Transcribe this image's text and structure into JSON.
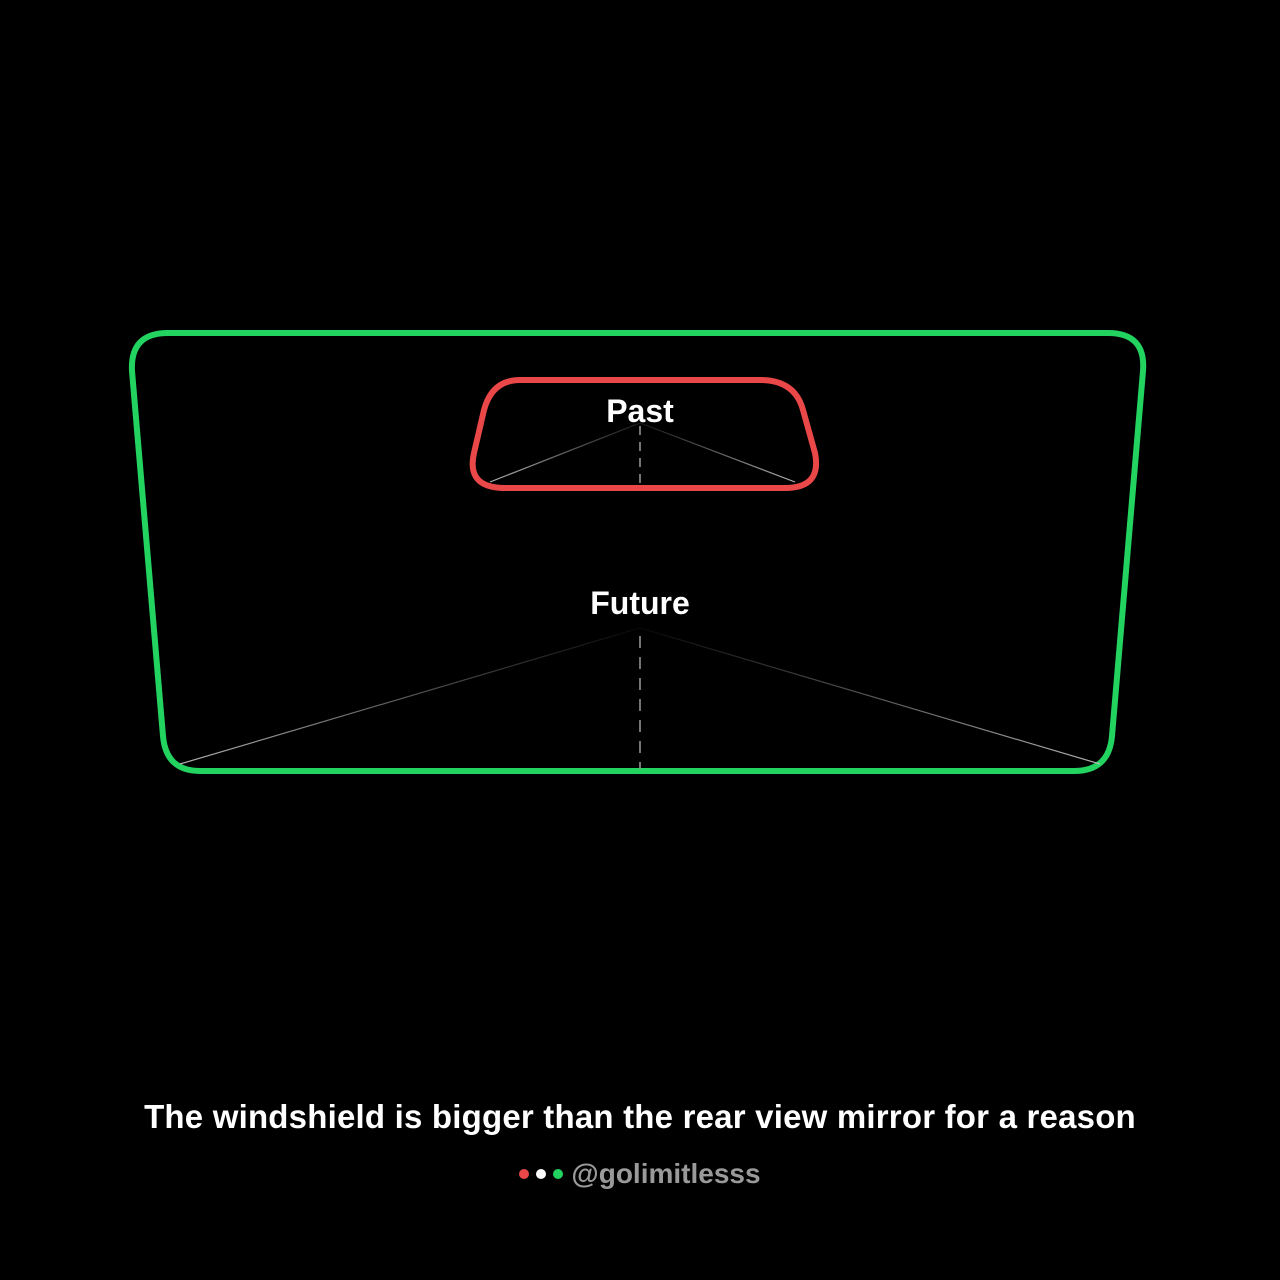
{
  "colors": {
    "background": "#000000",
    "windshield": "#22d35f",
    "mirror": "#ea4848",
    "text": "#ffffff",
    "handle": "#9a9a9a",
    "guide_lines": "#9c9c9c"
  },
  "mirror": {
    "label": "Past"
  },
  "windshield": {
    "label": "Future"
  },
  "caption": "The windshield is bigger than the rear view mirror for a reason",
  "footer": {
    "dot_colors": [
      "#ea4848",
      "#ffffff",
      "#22d35f"
    ],
    "handle": "@golimitlesss"
  }
}
